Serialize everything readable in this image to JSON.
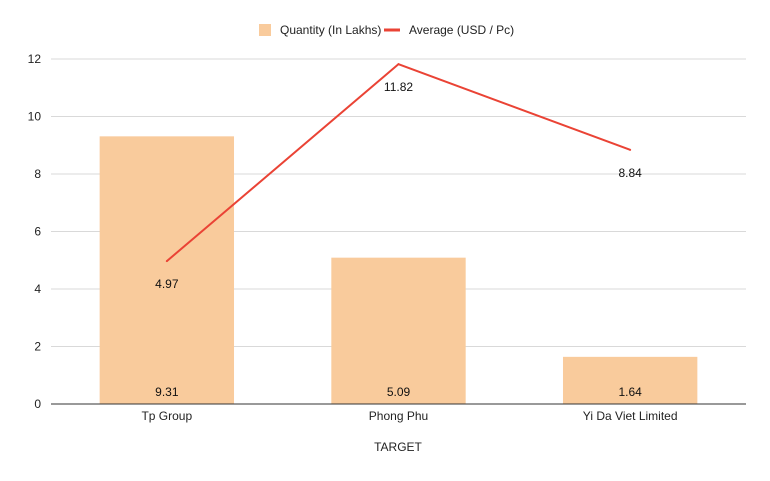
{
  "chart_data": {
    "type": "bar",
    "categories": [
      "Tp Group",
      "Phong Phu",
      "Yi Da Viet Limited"
    ],
    "xlabel": "TARGET",
    "ylabel": "",
    "ylim": [
      0,
      12
    ],
    "yticks": [
      "0",
      "2",
      "4",
      "6",
      "8",
      "10",
      "12"
    ],
    "grid": true,
    "legend_position": "top",
    "series": [
      {
        "name": "Quantity (In Lakhs)",
        "type": "bar",
        "color": "#f9cb9c",
        "values": [
          9.31,
          5.09,
          1.64
        ],
        "labels": [
          "9.31",
          "5.09",
          "1.64"
        ]
      },
      {
        "name": "Average (USD / Pc)",
        "type": "line",
        "color": "#ea4335",
        "values": [
          4.97,
          11.82,
          8.84
        ],
        "labels": [
          "4.97",
          "11.82",
          "8.84"
        ]
      }
    ]
  }
}
